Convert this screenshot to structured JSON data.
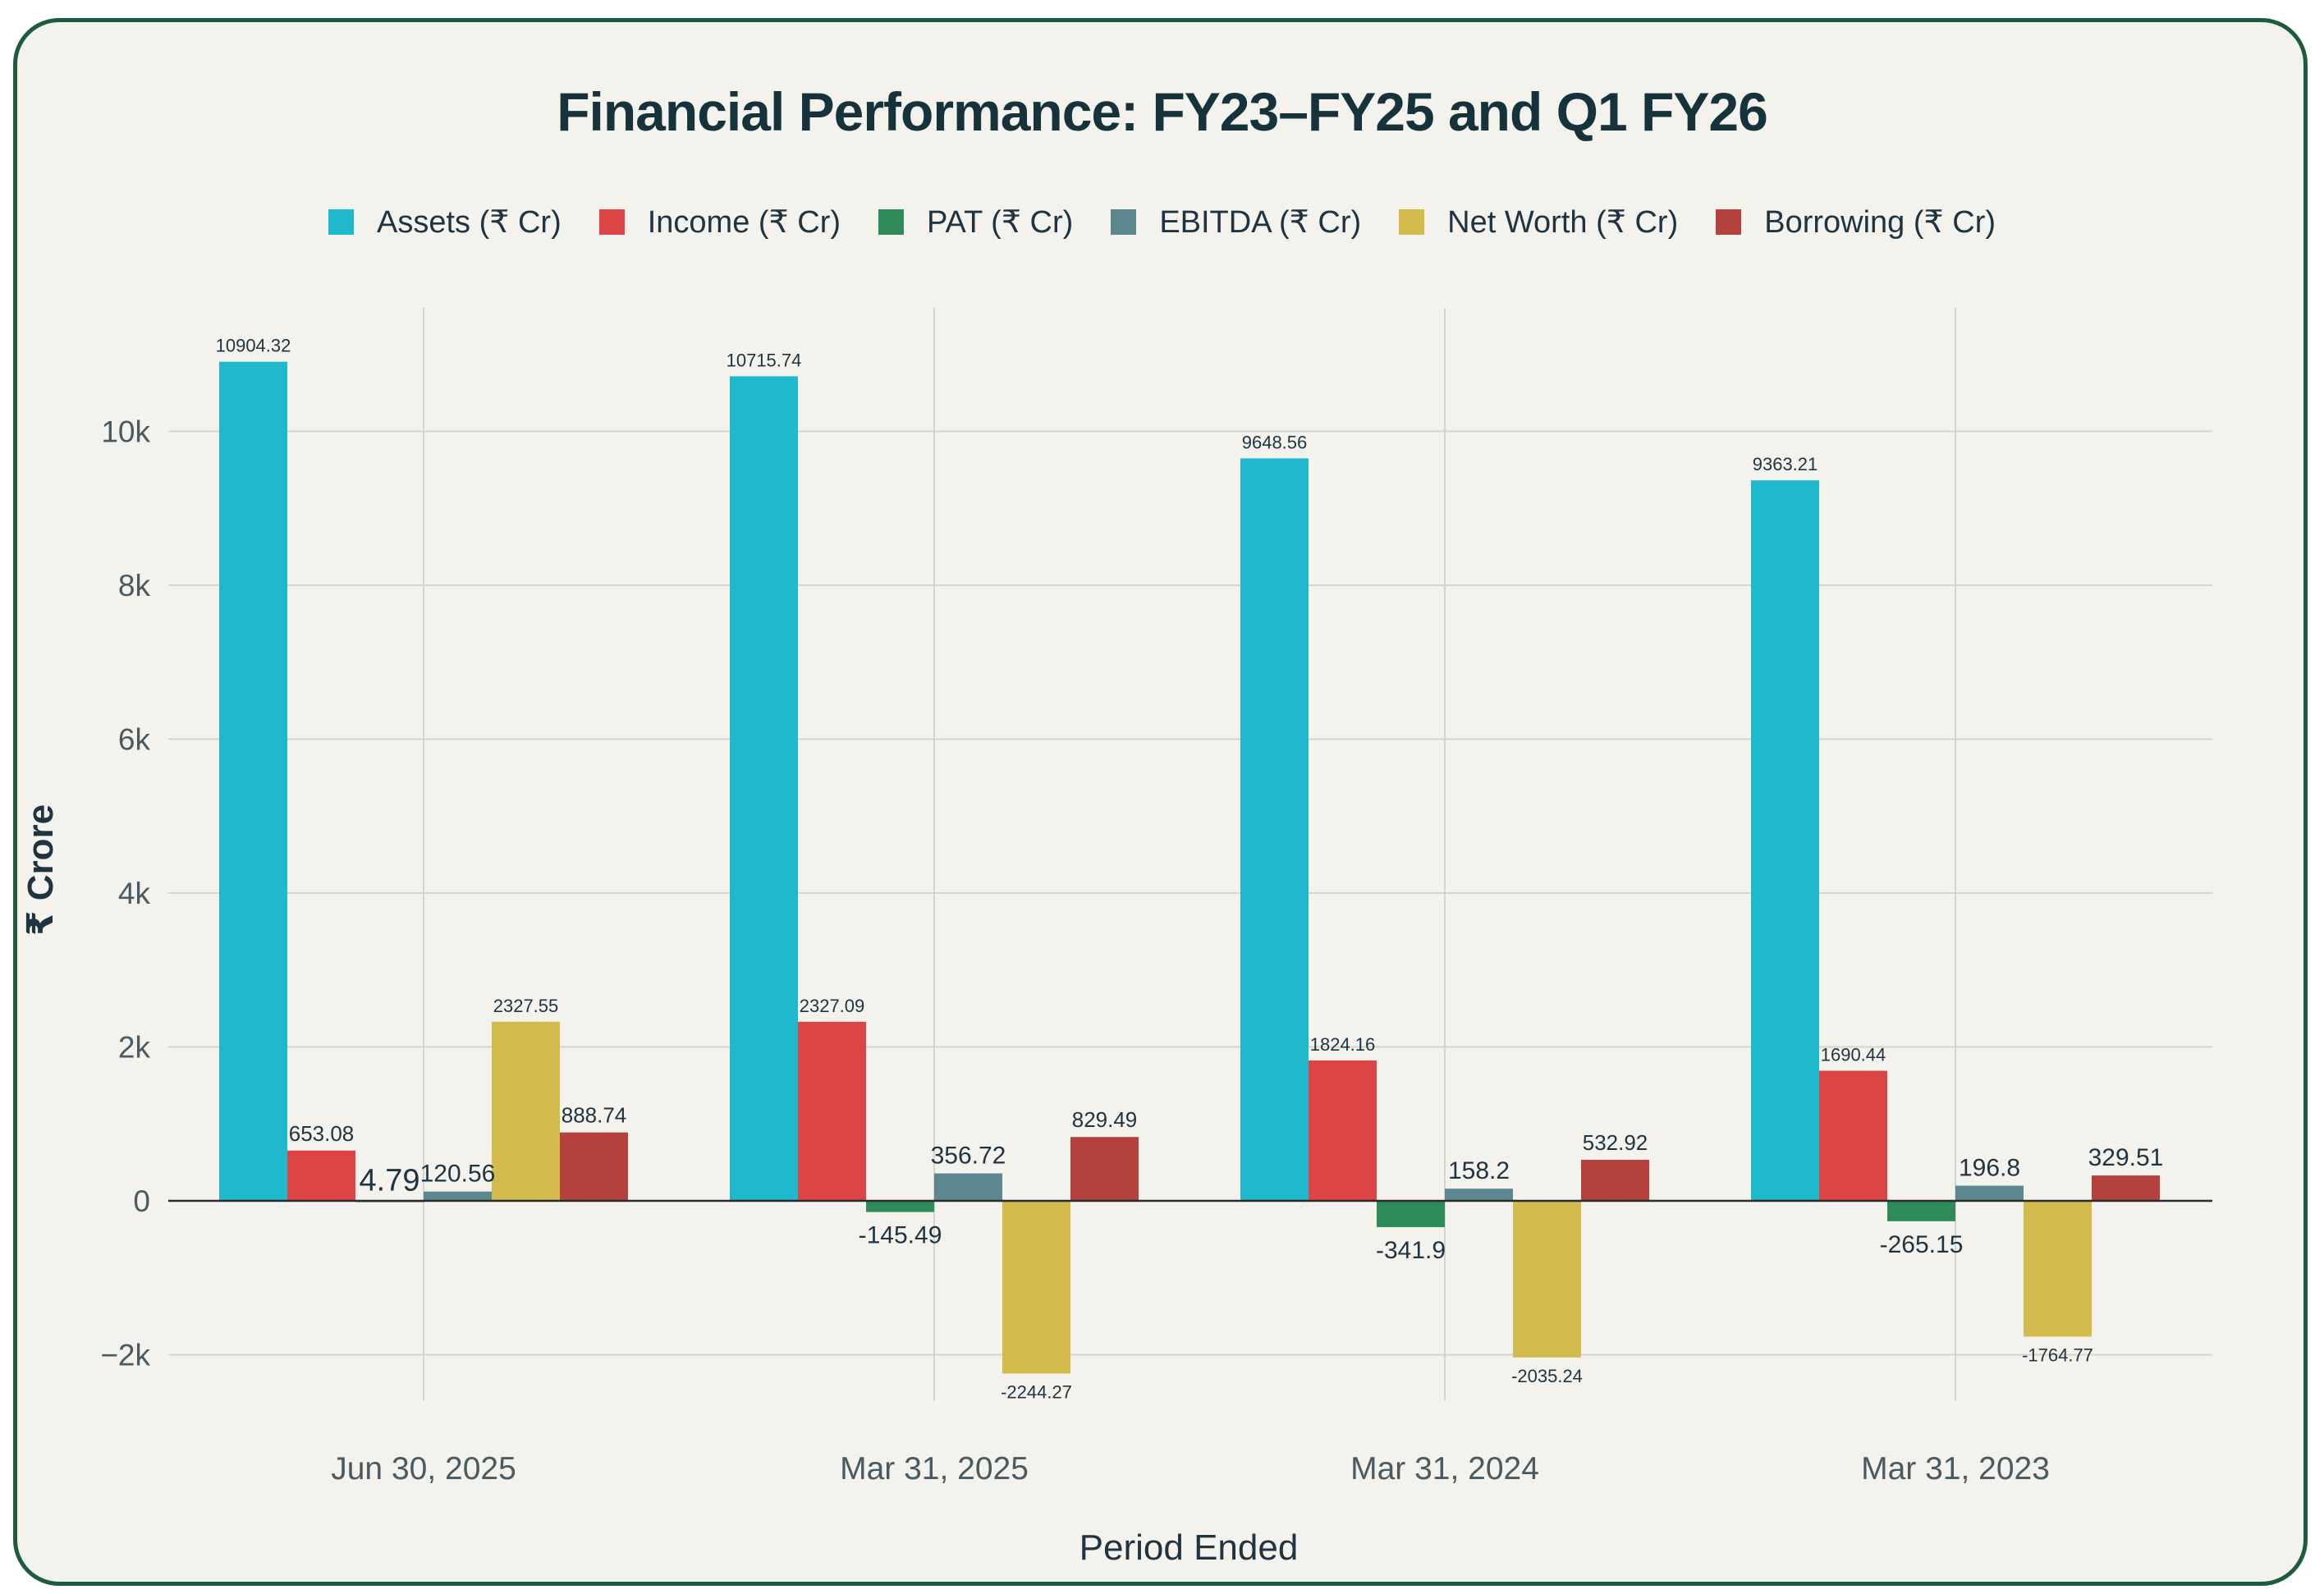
{
  "chart_data": {
    "type": "bar",
    "title": "Financial Performance: FY23–FY25 and Q1 FY26",
    "xlabel": "Period Ended",
    "ylabel": "₹ Crore",
    "ylim": [
      -2600,
      11600
    ],
    "y_ticks": [
      -2000,
      0,
      2000,
      4000,
      6000,
      8000,
      10000
    ],
    "y_tick_labels": [
      "−2k",
      "0",
      "2k",
      "4k",
      "6k",
      "8k",
      "10k"
    ],
    "grid": true,
    "legend_position": "top",
    "categories": [
      "Jun 30, 2025",
      "Mar 31, 2025",
      "Mar 31, 2024",
      "Mar 31, 2023"
    ],
    "series": [
      {
        "name": "Assets (₹ Cr)",
        "color": "#1fb8cd",
        "values": [
          10904.32,
          10715.74,
          9648.56,
          9363.21
        ],
        "labels": [
          "10904.32",
          "10715.74",
          "9648.56",
          "9363.21"
        ]
      },
      {
        "name": "Income (₹ Cr)",
        "color": "#db4545",
        "values": [
          653.08,
          2327.09,
          1824.16,
          1690.44
        ],
        "labels": [
          "653.08",
          "2327.09",
          "1824.16",
          "1690.44"
        ]
      },
      {
        "name": "PAT (₹ Cr)",
        "color": "#2e8b57",
        "values": [
          4.79,
          -145.49,
          -341.9,
          -265.15
        ],
        "labels": [
          "4.79",
          "-145.49",
          "-341.9",
          "-265.15"
        ]
      },
      {
        "name": "EBITDA (₹ Cr)",
        "color": "#5d878f",
        "values": [
          120.56,
          356.72,
          158.2,
          196.8
        ],
        "labels": [
          "120.56",
          "356.72",
          "158.2",
          "196.8"
        ]
      },
      {
        "name": "Net Worth (₹ Cr)",
        "color": "#d2ba4c",
        "values": [
          2327.55,
          -2244.27,
          -2035.24,
          -1764.77
        ],
        "labels": [
          "2327.55",
          "-2244.27",
          "-2035.24",
          "-1764.77"
        ]
      },
      {
        "name": "Borrowing (₹ Cr)",
        "color": "#b4413c",
        "values": [
          888.74,
          829.49,
          532.92,
          329.51
        ],
        "labels": [
          "888.74",
          "829.49",
          "532.92",
          "329.51"
        ]
      }
    ]
  }
}
